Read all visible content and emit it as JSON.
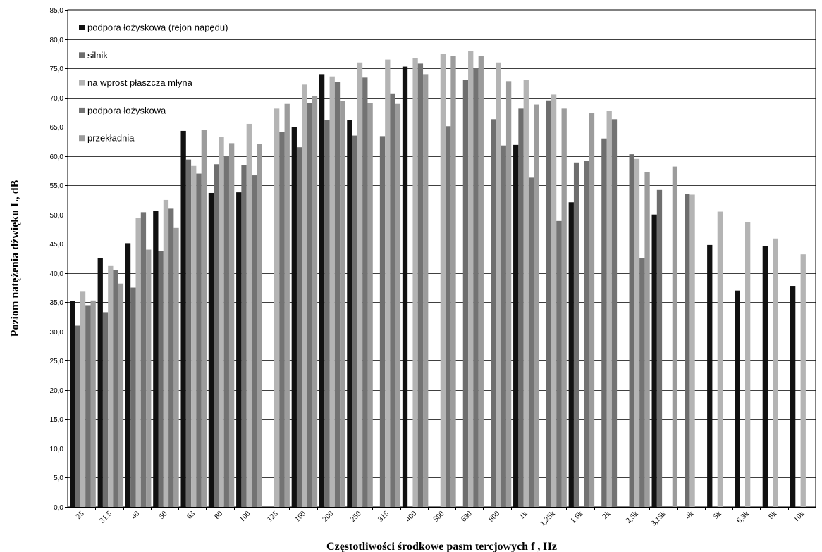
{
  "chart_data": {
    "type": "bar",
    "title": "",
    "xlabel": "Częstotliwości środkowe pasm tercjowych f , Hz",
    "ylabel": "Poziom natężenia dźwięku L, dB",
    "ylim": [
      0,
      85
    ],
    "ytick_step": 5,
    "ytick_labels": [
      "0,0",
      "5,0",
      "10,0",
      "15,0",
      "20,0",
      "25,0",
      "30,0",
      "35,0",
      "40,0",
      "45,0",
      "50,0",
      "55,0",
      "60,0",
      "65,0",
      "70,0",
      "75,0",
      "80,0",
      "85,0"
    ],
    "grid": true,
    "legend_position": "top-left",
    "categories": [
      "25",
      "31,5",
      "40",
      "50",
      "63",
      "80",
      "100",
      "125",
      "160",
      "200",
      "250",
      "315",
      "400",
      "500",
      "630",
      "800",
      "1k",
      "1,25k",
      "1,6k",
      "2k",
      "2,5k",
      "3,15k",
      "4k",
      "5k",
      "6,3k",
      "8k",
      "10k"
    ],
    "series": [
      {
        "name": "podpora łożyskowa (rejon napędu)",
        "color": "#111111",
        "values": [
          35.2,
          42.6,
          45.1,
          50.6,
          64.3,
          53.7,
          53.8,
          null,
          65.0,
          74.0,
          66.1,
          null,
          75.3,
          null,
          null,
          null,
          61.9,
          null,
          52.1,
          null,
          null,
          50.0,
          null,
          44.8,
          37.0,
          44.6,
          37.8
        ]
      },
      {
        "name": "silnik",
        "color": "#6e6e6e",
        "values": [
          31.0,
          33.3,
          37.5,
          43.8,
          59.4,
          58.6,
          58.4,
          null,
          61.5,
          66.2,
          63.5,
          63.4,
          null,
          null,
          73.0,
          66.3,
          68.1,
          69.5,
          58.9,
          63.0,
          60.3,
          54.2,
          53.5,
          null,
          null,
          null,
          null
        ]
      },
      {
        "name": "na wprost płaszcza młyna",
        "color": "#b4b4b4",
        "values": [
          36.8,
          41.2,
          49.4,
          52.5,
          58.3,
          63.3,
          65.5,
          68.1,
          72.2,
          73.6,
          76.0,
          76.5,
          76.8,
          77.5,
          78.0,
          76.0,
          73.0,
          70.5,
          null,
          67.7,
          59.5,
          null,
          53.4,
          50.5,
          48.7,
          45.9,
          43.2
        ]
      },
      {
        "name": "podpora łożyskowa",
        "color": "#737373",
        "values": [
          34.5,
          40.5,
          50.4,
          51.0,
          57.0,
          60.0,
          56.7,
          64.1,
          69.1,
          72.6,
          73.4,
          70.7,
          75.8,
          65.1,
          75.1,
          61.8,
          56.3,
          48.9,
          59.2,
          66.3,
          42.6,
          null,
          null,
          null,
          null,
          null,
          null
        ]
      },
      {
        "name": "przekładnia",
        "color": "#9c9c9c",
        "values": [
          35.3,
          38.2,
          44.0,
          47.7,
          64.5,
          62.2,
          62.1,
          68.9,
          70.2,
          69.4,
          69.1,
          68.9,
          74.0,
          77.1,
          77.1,
          72.8,
          68.8,
          68.1,
          67.3,
          null,
          57.2,
          58.2,
          null,
          null,
          null,
          null,
          null
        ]
      }
    ]
  }
}
